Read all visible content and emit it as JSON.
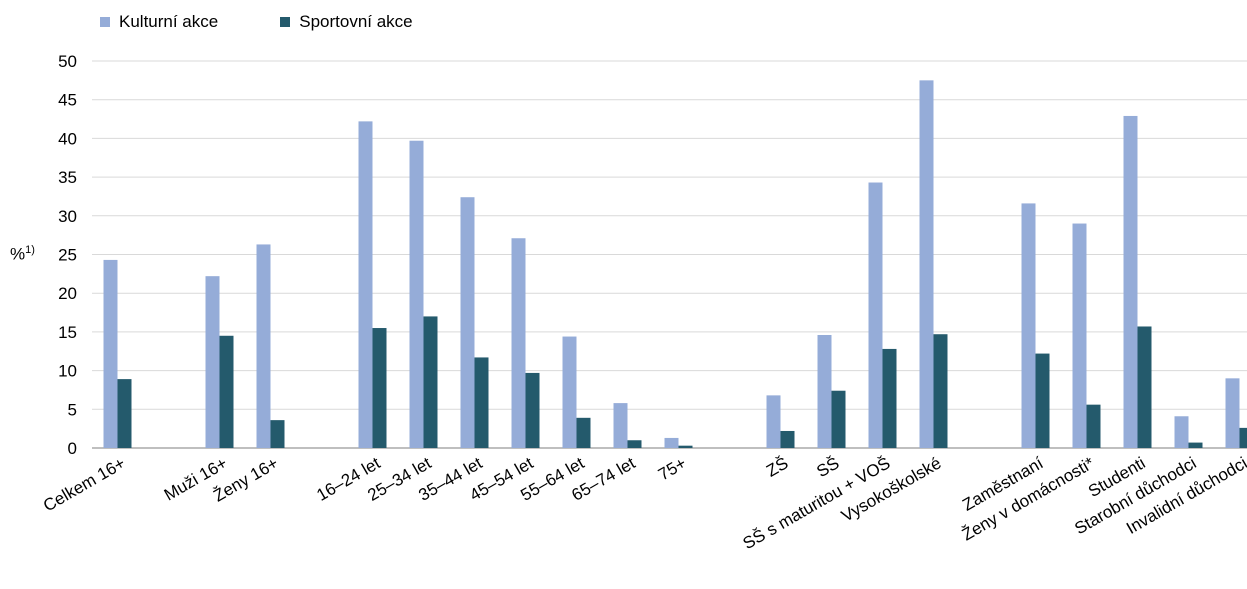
{
  "chart_data": {
    "type": "bar",
    "ylabel": "%",
    "ylabel_sup": "1)",
    "ylim": [
      0,
      50
    ],
    "yticks": [
      0,
      5,
      10,
      15,
      20,
      25,
      30,
      35,
      40,
      45,
      50
    ],
    "grid": true,
    "legend_position": "top-left",
    "categories": [
      "Celkem 16+",
      "Muži 16+",
      "Ženy 16+",
      "16–24 let",
      "25–34 let",
      "35–44 let",
      "45–54 let",
      "55–64 let",
      "65–74 let",
      "75+",
      "ZŠ",
      "SŠ",
      "SŠ s maturitou + VOŠ",
      "Vysokoškolské",
      "Zaměstnaní",
      "Ženy v domácnosti*",
      "Studenti",
      "Starobní důchodci",
      "Invalidní důchodci"
    ],
    "groups": [
      [
        0
      ],
      [
        1,
        2
      ],
      [
        3,
        4,
        5,
        6,
        7,
        8,
        9
      ],
      [
        10,
        11,
        12,
        13
      ],
      [
        14,
        15,
        16,
        17,
        18
      ]
    ],
    "series": [
      {
        "name": "Kulturní akce",
        "color": "#95ACD8",
        "values": [
          24.3,
          22.2,
          26.3,
          42.2,
          39.7,
          32.4,
          27.1,
          14.4,
          5.8,
          1.3,
          6.8,
          14.6,
          34.3,
          47.5,
          31.6,
          29.0,
          42.9,
          4.1,
          9.0
        ]
      },
      {
        "name": "Sportovní akce",
        "color": "#245A6C",
        "values": [
          8.9,
          14.5,
          3.6,
          15.5,
          17.0,
          11.7,
          9.7,
          3.9,
          1.0,
          0.3,
          2.2,
          7.4,
          12.8,
          14.7,
          12.2,
          5.6,
          15.7,
          0.7,
          2.6
        ]
      }
    ]
  }
}
